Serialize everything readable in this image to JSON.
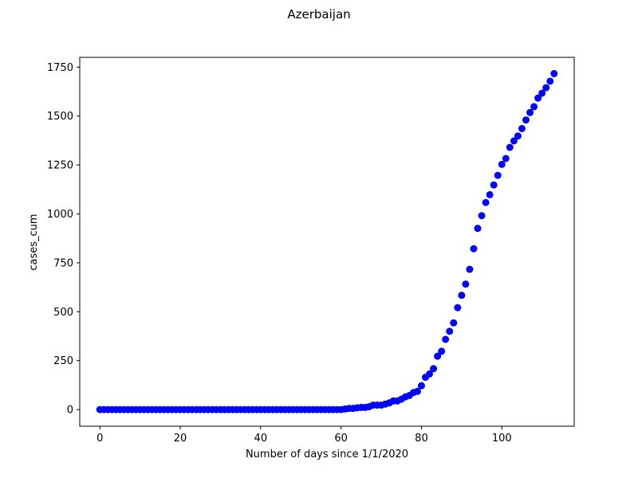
{
  "chart_data": {
    "type": "scatter",
    "title": "Azerbaijan",
    "xlabel": "Number of days since 1/1/2020",
    "ylabel": "cases_cum",
    "xlim": [
      -5,
      118
    ],
    "ylim": [
      -85,
      1800
    ],
    "xticks": [
      0,
      20,
      40,
      60,
      80,
      100
    ],
    "yticks": [
      0,
      250,
      500,
      750,
      1000,
      1250,
      1500,
      1750
    ],
    "grid": false,
    "legend": "none",
    "marker_color": "#0000ff",
    "series": [
      {
        "x": [
          0,
          1,
          2,
          3,
          4,
          5,
          6,
          7,
          8,
          9,
          10,
          11,
          12,
          13,
          14,
          15,
          16,
          17,
          18,
          19,
          20,
          21,
          22,
          23,
          24,
          25,
          26,
          27,
          28,
          29,
          30,
          31,
          32,
          33,
          34,
          35,
          36,
          37,
          38,
          39,
          40,
          41,
          42,
          43,
          44,
          45,
          46,
          47,
          48,
          49,
          50,
          51,
          52,
          53,
          54,
          55,
          56,
          57,
          58,
          59,
          60,
          61,
          62,
          63,
          64,
          65,
          66,
          67,
          68,
          69,
          70,
          71,
          72,
          73,
          74,
          75,
          76,
          77,
          78,
          79,
          80,
          81,
          82,
          83,
          84,
          85,
          86,
          87,
          88,
          89,
          90,
          91,
          92,
          93,
          94,
          95,
          96,
          97,
          98,
          99,
          100,
          101,
          102,
          103,
          104,
          105,
          106,
          107,
          108,
          109,
          110,
          111,
          112,
          113
        ],
        "values": [
          0,
          0,
          0,
          0,
          0,
          0,
          0,
          0,
          0,
          0,
          0,
          0,
          0,
          0,
          0,
          0,
          0,
          0,
          0,
          0,
          0,
          0,
          0,
          0,
          0,
          0,
          0,
          0,
          0,
          0,
          0,
          0,
          0,
          0,
          0,
          0,
          0,
          0,
          0,
          0,
          0,
          0,
          0,
          0,
          0,
          0,
          0,
          0,
          0,
          0,
          0,
          0,
          0,
          0,
          0,
          0,
          0,
          0,
          0,
          0,
          0,
          3,
          6,
          6,
          9,
          11,
          11,
          15,
          23,
          23,
          23,
          28,
          34,
          44,
          44,
          53,
          65,
          72,
          87,
          93,
          122,
          165,
          182,
          209,
          273,
          298,
          359,
          400,
          443,
          521,
          584,
          641,
          717,
          822,
          926,
          991,
          1058,
          1098,
          1148,
          1197,
          1253,
          1283,
          1340,
          1373,
          1398,
          1436,
          1480,
          1518,
          1548,
          1592,
          1617,
          1645,
          1678,
          1717
        ]
      }
    ]
  }
}
